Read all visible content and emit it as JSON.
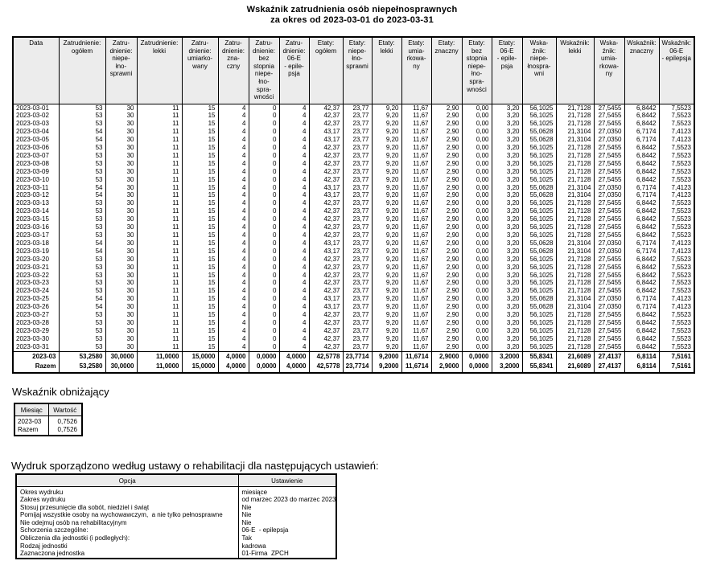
{
  "title": {
    "line1": "Wskaźnik zatrudnienia osób niepełnosprawnych",
    "line2": "za okres od 2023-03-01 do 2023-03-31"
  },
  "main_table": {
    "headers": [
      "Data",
      "Zatrudnienie:\nogółem",
      "Zatru-\ndnienie:\nniepe-\nłno-\nsprawni",
      "Zatrudnienie:\nlekki",
      "Zatru-\ndnienie:\numiarko-\nwany",
      "Zatru-\ndnienie:\nzna-\nczny",
      "Zatru-\ndnienie:\nbez\nstopnia\nniepe-\nłno-\nspra-\nwności",
      "Zatru-\ndnienie:\n06-E\n- epile-\npsja",
      "Etaty:\nogółem",
      "Etaty:\nniepe-\nłno-\nsprawni",
      "Etaty:\nlekki",
      "Etaty:\numia-\nrkowa-\nny",
      "Etaty:\nznaczny",
      "Etaty:\nbez\nstopnia\nniepe-\nłno-\nspra-\nwności",
      "Etaty:\n06-E\n- epile-\npsja",
      "Wska-\nźnik:\nniepe-\nłnospra-\nwni",
      "Wskaźnik:\nlekki",
      "Wska-\nźnik:\numia-\nrkowa-\nny",
      "Wskaźnik:\nznaczny",
      "Wskaźnik:\n06-E\n- epilepsja"
    ],
    "rows": [
      [
        "2023-03-01",
        "53",
        "30",
        "11",
        "15",
        "4",
        "0",
        "4",
        "42,37",
        "23,77",
        "9,20",
        "11,67",
        "2,90",
        "0,00",
        "3,20",
        "56,1025",
        "21,7128",
        "27,5455",
        "6,8442",
        "7,5523"
      ],
      [
        "2023-03-02",
        "53",
        "30",
        "11",
        "15",
        "4",
        "0",
        "4",
        "42,37",
        "23,77",
        "9,20",
        "11,67",
        "2,90",
        "0,00",
        "3,20",
        "56,1025",
        "21,7128",
        "27,5455",
        "6,8442",
        "7,5523"
      ],
      [
        "2023-03-03",
        "53",
        "30",
        "11",
        "15",
        "4",
        "0",
        "4",
        "42,37",
        "23,77",
        "9,20",
        "11,67",
        "2,90",
        "0,00",
        "3,20",
        "56,1025",
        "21,7128",
        "27,5455",
        "6,8442",
        "7,5523"
      ],
      [
        "2023-03-04",
        "54",
        "30",
        "11",
        "15",
        "4",
        "0",
        "4",
        "43,17",
        "23,77",
        "9,20",
        "11,67",
        "2,90",
        "0,00",
        "3,20",
        "55,0628",
        "21,3104",
        "27,0350",
        "6,7174",
        "7,4123"
      ],
      [
        "2023-03-05",
        "54",
        "30",
        "11",
        "15",
        "4",
        "0",
        "4",
        "43,17",
        "23,77",
        "9,20",
        "11,67",
        "2,90",
        "0,00",
        "3,20",
        "55,0628",
        "21,3104",
        "27,0350",
        "6,7174",
        "7,4123"
      ],
      [
        "2023-03-06",
        "53",
        "30",
        "11",
        "15",
        "4",
        "0",
        "4",
        "42,37",
        "23,77",
        "9,20",
        "11,67",
        "2,90",
        "0,00",
        "3,20",
        "56,1025",
        "21,7128",
        "27,5455",
        "6,8442",
        "7,5523"
      ],
      [
        "2023-03-07",
        "53",
        "30",
        "11",
        "15",
        "4",
        "0",
        "4",
        "42,37",
        "23,77",
        "9,20",
        "11,67",
        "2,90",
        "0,00",
        "3,20",
        "56,1025",
        "21,7128",
        "27,5455",
        "6,8442",
        "7,5523"
      ],
      [
        "2023-03-08",
        "53",
        "30",
        "11",
        "15",
        "4",
        "0",
        "4",
        "42,37",
        "23,77",
        "9,20",
        "11,67",
        "2,90",
        "0,00",
        "3,20",
        "56,1025",
        "21,7128",
        "27,5455",
        "6,8442",
        "7,5523"
      ],
      [
        "2023-03-09",
        "53",
        "30",
        "11",
        "15",
        "4",
        "0",
        "4",
        "42,37",
        "23,77",
        "9,20",
        "11,67",
        "2,90",
        "0,00",
        "3,20",
        "56,1025",
        "21,7128",
        "27,5455",
        "6,8442",
        "7,5523"
      ],
      [
        "2023-03-10",
        "53",
        "30",
        "11",
        "15",
        "4",
        "0",
        "4",
        "42,37",
        "23,77",
        "9,20",
        "11,67",
        "2,90",
        "0,00",
        "3,20",
        "56,1025",
        "21,7128",
        "27,5455",
        "6,8442",
        "7,5523"
      ],
      [
        "2023-03-11",
        "54",
        "30",
        "11",
        "15",
        "4",
        "0",
        "4",
        "43,17",
        "23,77",
        "9,20",
        "11,67",
        "2,90",
        "0,00",
        "3,20",
        "55,0628",
        "21,3104",
        "27,0350",
        "6,7174",
        "7,4123"
      ],
      [
        "2023-03-12",
        "54",
        "30",
        "11",
        "15",
        "4",
        "0",
        "4",
        "43,17",
        "23,77",
        "9,20",
        "11,67",
        "2,90",
        "0,00",
        "3,20",
        "55,0628",
        "21,3104",
        "27,0350",
        "6,7174",
        "7,4123"
      ],
      [
        "2023-03-13",
        "53",
        "30",
        "11",
        "15",
        "4",
        "0",
        "4",
        "42,37",
        "23,77",
        "9,20",
        "11,67",
        "2,90",
        "0,00",
        "3,20",
        "56,1025",
        "21,7128",
        "27,5455",
        "6,8442",
        "7,5523"
      ],
      [
        "2023-03-14",
        "53",
        "30",
        "11",
        "15",
        "4",
        "0",
        "4",
        "42,37",
        "23,77",
        "9,20",
        "11,67",
        "2,90",
        "0,00",
        "3,20",
        "56,1025",
        "21,7128",
        "27,5455",
        "6,8442",
        "7,5523"
      ],
      [
        "2023-03-15",
        "53",
        "30",
        "11",
        "15",
        "4",
        "0",
        "4",
        "42,37",
        "23,77",
        "9,20",
        "11,67",
        "2,90",
        "0,00",
        "3,20",
        "56,1025",
        "21,7128",
        "27,5455",
        "6,8442",
        "7,5523"
      ],
      [
        "2023-03-16",
        "53",
        "30",
        "11",
        "15",
        "4",
        "0",
        "4",
        "42,37",
        "23,77",
        "9,20",
        "11,67",
        "2,90",
        "0,00",
        "3,20",
        "56,1025",
        "21,7128",
        "27,5455",
        "6,8442",
        "7,5523"
      ],
      [
        "2023-03-17",
        "53",
        "30",
        "11",
        "15",
        "4",
        "0",
        "4",
        "42,37",
        "23,77",
        "9,20",
        "11,67",
        "2,90",
        "0,00",
        "3,20",
        "56,1025",
        "21,7128",
        "27,5455",
        "6,8442",
        "7,5523"
      ],
      [
        "2023-03-18",
        "54",
        "30",
        "11",
        "15",
        "4",
        "0",
        "4",
        "43,17",
        "23,77",
        "9,20",
        "11,67",
        "2,90",
        "0,00",
        "3,20",
        "55,0628",
        "21,3104",
        "27,0350",
        "6,7174",
        "7,4123"
      ],
      [
        "2023-03-19",
        "54",
        "30",
        "11",
        "15",
        "4",
        "0",
        "4",
        "43,17",
        "23,77",
        "9,20",
        "11,67",
        "2,90",
        "0,00",
        "3,20",
        "55,0628",
        "21,3104",
        "27,0350",
        "6,7174",
        "7,4123"
      ],
      [
        "2023-03-20",
        "53",
        "30",
        "11",
        "15",
        "4",
        "0",
        "4",
        "42,37",
        "23,77",
        "9,20",
        "11,67",
        "2,90",
        "0,00",
        "3,20",
        "56,1025",
        "21,7128",
        "27,5455",
        "6,8442",
        "7,5523"
      ],
      [
        "2023-03-21",
        "53",
        "30",
        "11",
        "15",
        "4",
        "0",
        "4",
        "42,37",
        "23,77",
        "9,20",
        "11,67",
        "2,90",
        "0,00",
        "3,20",
        "56,1025",
        "21,7128",
        "27,5455",
        "6,8442",
        "7,5523"
      ],
      [
        "2023-03-22",
        "53",
        "30",
        "11",
        "15",
        "4",
        "0",
        "4",
        "42,37",
        "23,77",
        "9,20",
        "11,67",
        "2,90",
        "0,00",
        "3,20",
        "56,1025",
        "21,7128",
        "27,5455",
        "6,8442",
        "7,5523"
      ],
      [
        "2023-03-23",
        "53",
        "30",
        "11",
        "15",
        "4",
        "0",
        "4",
        "42,37",
        "23,77",
        "9,20",
        "11,67",
        "2,90",
        "0,00",
        "3,20",
        "56,1025",
        "21,7128",
        "27,5455",
        "6,8442",
        "7,5523"
      ],
      [
        "2023-03-24",
        "53",
        "30",
        "11",
        "15",
        "4",
        "0",
        "4",
        "42,37",
        "23,77",
        "9,20",
        "11,67",
        "2,90",
        "0,00",
        "3,20",
        "56,1025",
        "21,7128",
        "27,5455",
        "6,8442",
        "7,5523"
      ],
      [
        "2023-03-25",
        "54",
        "30",
        "11",
        "15",
        "4",
        "0",
        "4",
        "43,17",
        "23,77",
        "9,20",
        "11,67",
        "2,90",
        "0,00",
        "3,20",
        "55,0628",
        "21,3104",
        "27,0350",
        "6,7174",
        "7,4123"
      ],
      [
        "2023-03-26",
        "54",
        "30",
        "11",
        "15",
        "4",
        "0",
        "4",
        "43,17",
        "23,77",
        "9,20",
        "11,67",
        "2,90",
        "0,00",
        "3,20",
        "55,0628",
        "21,3104",
        "27,0350",
        "6,7174",
        "7,4123"
      ],
      [
        "2023-03-27",
        "53",
        "30",
        "11",
        "15",
        "4",
        "0",
        "4",
        "42,37",
        "23,77",
        "9,20",
        "11,67",
        "2,90",
        "0,00",
        "3,20",
        "56,1025",
        "21,7128",
        "27,5455",
        "6,8442",
        "7,5523"
      ],
      [
        "2023-03-28",
        "53",
        "30",
        "11",
        "15",
        "4",
        "0",
        "4",
        "42,37",
        "23,77",
        "9,20",
        "11,67",
        "2,90",
        "0,00",
        "3,20",
        "56,1025",
        "21,7128",
        "27,5455",
        "6,8442",
        "7,5523"
      ],
      [
        "2023-03-29",
        "53",
        "30",
        "11",
        "15",
        "4",
        "0",
        "4",
        "42,37",
        "23,77",
        "9,20",
        "11,67",
        "2,90",
        "0,00",
        "3,20",
        "56,1025",
        "21,7128",
        "27,5455",
        "6,8442",
        "7,5523"
      ],
      [
        "2023-03-30",
        "53",
        "30",
        "11",
        "15",
        "4",
        "0",
        "4",
        "42,37",
        "23,77",
        "9,20",
        "11,67",
        "2,90",
        "0,00",
        "3,20",
        "56,1025",
        "21,7128",
        "27,5455",
        "6,8442",
        "7,5523"
      ],
      [
        "2023-03-31",
        "53",
        "30",
        "11",
        "15",
        "4",
        "0",
        "4",
        "42,37",
        "23,77",
        "9,20",
        "11,67",
        "2,90",
        "0,00",
        "3,20",
        "56,1025",
        "21,7128",
        "27,5455",
        "6,8442",
        "7,5523"
      ]
    ],
    "summary_rows": [
      [
        "2023-03",
        "53,2580",
        "30,0000",
        "11,0000",
        "15,0000",
        "4,0000",
        "0,0000",
        "4,0000",
        "42,5778",
        "23,7714",
        "9,2000",
        "11,6714",
        "2,9000",
        "0,0000",
        "3,2000",
        "55,8341",
        "21,6089",
        "27,4137",
        "6,8114",
        "7,5161"
      ],
      [
        "Razem",
        "53,2580",
        "30,0000",
        "11,0000",
        "15,0000",
        "4,0000",
        "0,0000",
        "4,0000",
        "42,5778",
        "23,7714",
        "9,2000",
        "11,6714",
        "2,9000",
        "0,0000",
        "3,2000",
        "55,8341",
        "21,6089",
        "27,4137",
        "6,8114",
        "7,5161"
      ]
    ]
  },
  "reduction": {
    "title": "Wskaźnik obniżający",
    "headers": [
      "Miesiąc",
      "Wartość"
    ],
    "rows": [
      [
        "2023-03",
        "0,7526"
      ],
      [
        "Razem",
        "0,7526"
      ]
    ]
  },
  "settings": {
    "title": "Wydruk sporządzono według ustawy o rehabilitacji dla następujących ustawień:",
    "headers": [
      "Opcja",
      "Ustawienie"
    ],
    "rows": [
      [
        "Okres wydruku",
        "miesiące"
      ],
      [
        "Zakres wydruku",
        "od marzec 2023 do marzec 2023"
      ],
      [
        "Stosuj przesunięcie dla sobót, niedziel i świąt",
        "Nie"
      ],
      [
        "Pomijaj wszystkie osoby na wychowawczym,  a nie tylko pełnosprawne",
        "Nie"
      ],
      [
        "Nie odejmuj osób na rehabilitacyjnym",
        "Nie"
      ],
      [
        "Schorzenia szczególne:",
        "06-E  - epilepsja"
      ],
      [
        "Obliczenia dla jednostki (i podległych):",
        "Tak"
      ],
      [
        "Rodzaj jednostki",
        "kadrowa"
      ],
      [
        "Zaznaczona jednostka",
        "01-Firma  ZPCH"
      ]
    ]
  }
}
